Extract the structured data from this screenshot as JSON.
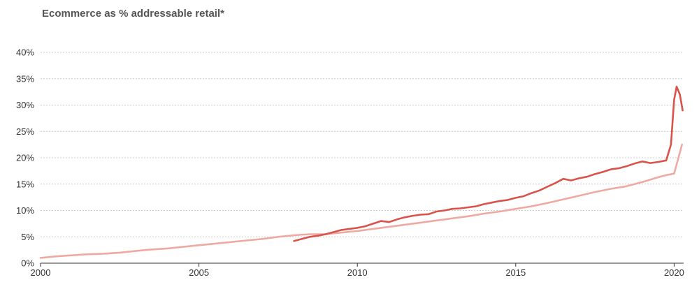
{
  "colors": {
    "monthly": "#d9534a",
    "smoothed": "#eeaaa2",
    "grid": "#cccccc",
    "axis": "#333333"
  },
  "chart_data": {
    "type": "line",
    "title": "Ecommerce as % addressable retail*",
    "xlim": [
      2000,
      2020.3
    ],
    "ylim": [
      0,
      40
    ],
    "grid": "horizontal dotted",
    "xticks": [
      {
        "value": 2000,
        "label": "2000"
      },
      {
        "value": 2005,
        "label": "2005"
      },
      {
        "value": 2010,
        "label": "2010"
      },
      {
        "value": 2015,
        "label": "2015"
      },
      {
        "value": 2020,
        "label": "2020"
      }
    ],
    "yticks": [
      {
        "value": 0,
        "label": "0%"
      },
      {
        "value": 5,
        "label": "5%"
      },
      {
        "value": 10,
        "label": "10%"
      },
      {
        "value": 15,
        "label": "15%"
      },
      {
        "value": 20,
        "label": "20%"
      },
      {
        "value": 25,
        "label": "25%"
      },
      {
        "value": 30,
        "label": "30%"
      },
      {
        "value": 35,
        "label": "35%"
      },
      {
        "value": 40,
        "label": "40%"
      }
    ],
    "series": [
      {
        "color": "#eeaaa2",
        "points": [
          [
            2000.0,
            1.0
          ],
          [
            2000.5,
            1.3
          ],
          [
            2001.0,
            1.5
          ],
          [
            2001.5,
            1.7
          ],
          [
            2002.0,
            1.8
          ],
          [
            2002.5,
            2.0
          ],
          [
            2003.0,
            2.3
          ],
          [
            2003.5,
            2.6
          ],
          [
            2004.0,
            2.8
          ],
          [
            2004.5,
            3.1
          ],
          [
            2005.0,
            3.4
          ],
          [
            2005.5,
            3.7
          ],
          [
            2006.0,
            4.0
          ],
          [
            2006.5,
            4.3
          ],
          [
            2007.0,
            4.6
          ],
          [
            2007.5,
            5.0
          ],
          [
            2008.0,
            5.3
          ],
          [
            2008.5,
            5.5
          ],
          [
            2009.0,
            5.5
          ],
          [
            2009.5,
            5.8
          ],
          [
            2010.0,
            6.1
          ],
          [
            2010.5,
            6.5
          ],
          [
            2011.0,
            6.9
          ],
          [
            2011.5,
            7.3
          ],
          [
            2012.0,
            7.7
          ],
          [
            2012.5,
            8.1
          ],
          [
            2013.0,
            8.5
          ],
          [
            2013.5,
            8.9
          ],
          [
            2014.0,
            9.4
          ],
          [
            2014.5,
            9.8
          ],
          [
            2015.0,
            10.3
          ],
          [
            2015.5,
            10.8
          ],
          [
            2016.0,
            11.4
          ],
          [
            2016.5,
            12.1
          ],
          [
            2017.0,
            12.8
          ],
          [
            2017.5,
            13.5
          ],
          [
            2018.0,
            14.1
          ],
          [
            2018.5,
            14.6
          ],
          [
            2019.0,
            15.4
          ],
          [
            2019.5,
            16.3
          ],
          [
            2019.75,
            16.7
          ],
          [
            2020.0,
            17.0
          ],
          [
            2020.25,
            22.5
          ]
        ]
      },
      {
        "color": "#d9534a",
        "points": [
          [
            2008.0,
            4.2
          ],
          [
            2008.25,
            4.6
          ],
          [
            2008.5,
            5.0
          ],
          [
            2008.75,
            5.2
          ],
          [
            2009.0,
            5.5
          ],
          [
            2009.25,
            5.9
          ],
          [
            2009.5,
            6.3
          ],
          [
            2009.75,
            6.5
          ],
          [
            2010.0,
            6.7
          ],
          [
            2010.25,
            7.0
          ],
          [
            2010.5,
            7.5
          ],
          [
            2010.75,
            8.0
          ],
          [
            2011.0,
            7.8
          ],
          [
            2011.25,
            8.3
          ],
          [
            2011.5,
            8.7
          ],
          [
            2011.75,
            9.0
          ],
          [
            2012.0,
            9.2
          ],
          [
            2012.25,
            9.3
          ],
          [
            2012.5,
            9.8
          ],
          [
            2012.75,
            10.0
          ],
          [
            2013.0,
            10.3
          ],
          [
            2013.25,
            10.4
          ],
          [
            2013.5,
            10.6
          ],
          [
            2013.75,
            10.8
          ],
          [
            2014.0,
            11.2
          ],
          [
            2014.25,
            11.5
          ],
          [
            2014.5,
            11.8
          ],
          [
            2014.75,
            12.0
          ],
          [
            2015.0,
            12.4
          ],
          [
            2015.25,
            12.7
          ],
          [
            2015.5,
            13.3
          ],
          [
            2015.75,
            13.8
          ],
          [
            2016.0,
            14.5
          ],
          [
            2016.25,
            15.2
          ],
          [
            2016.5,
            16.0
          ],
          [
            2016.75,
            15.7
          ],
          [
            2017.0,
            16.1
          ],
          [
            2017.25,
            16.4
          ],
          [
            2017.5,
            16.9
          ],
          [
            2017.75,
            17.3
          ],
          [
            2018.0,
            17.8
          ],
          [
            2018.25,
            18.0
          ],
          [
            2018.5,
            18.4
          ],
          [
            2018.75,
            18.9
          ],
          [
            2019.0,
            19.3
          ],
          [
            2019.25,
            19.0
          ],
          [
            2019.5,
            19.2
          ],
          [
            2019.75,
            19.5
          ],
          [
            2019.9,
            22.5
          ],
          [
            2020.0,
            31.0
          ],
          [
            2020.08,
            33.5
          ],
          [
            2020.18,
            32.0
          ],
          [
            2020.27,
            29.0
          ]
        ]
      }
    ]
  }
}
